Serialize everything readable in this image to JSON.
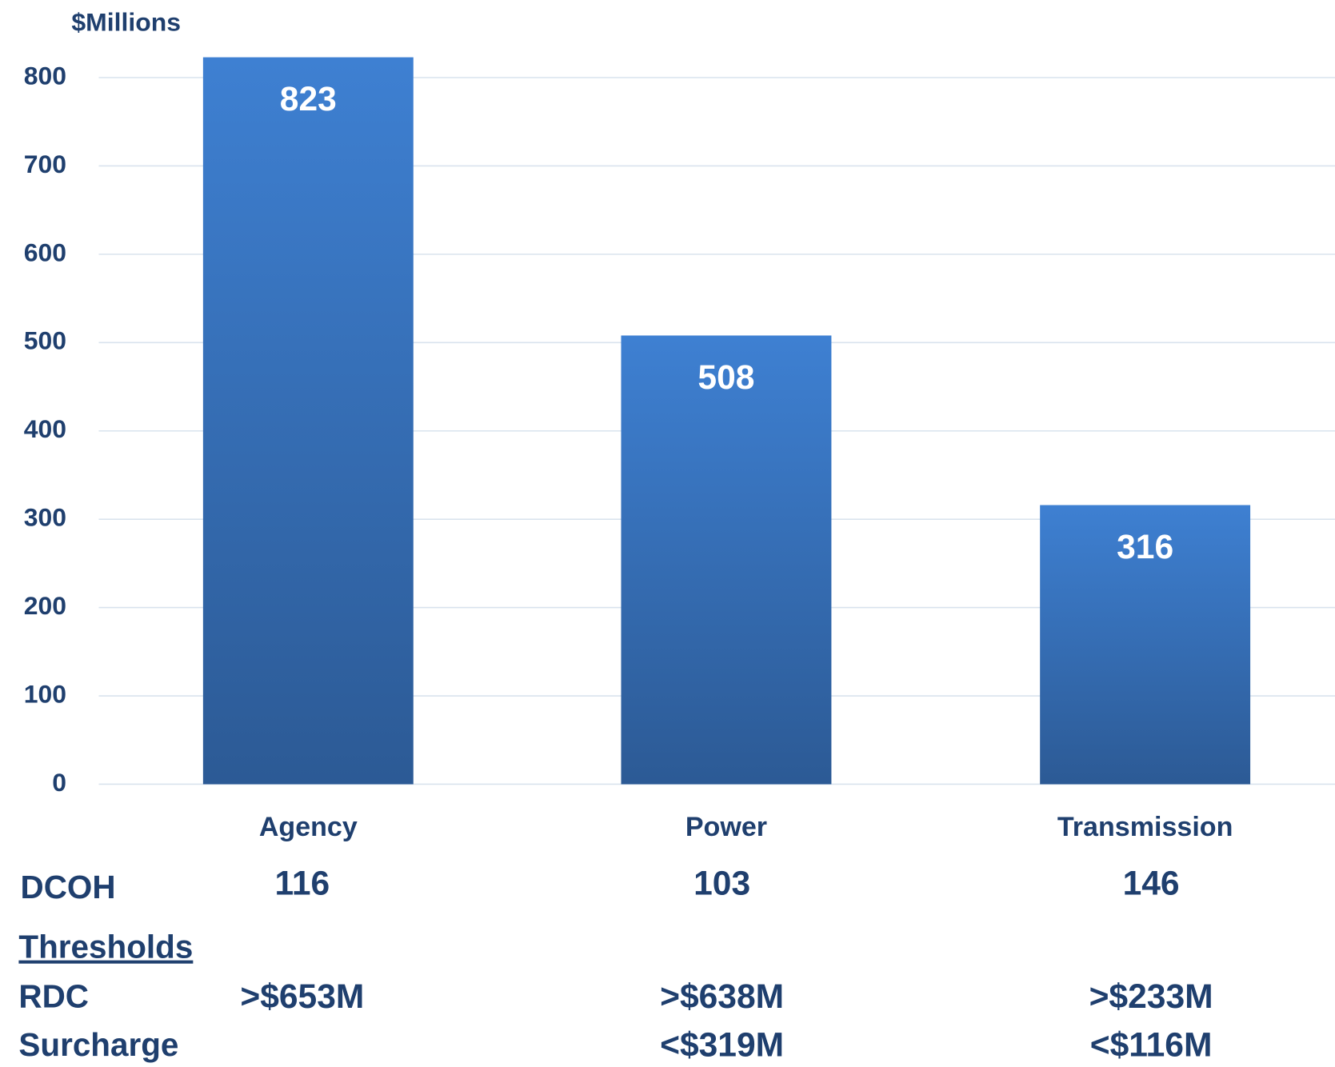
{
  "chart_data": {
    "type": "bar",
    "y_label": "$Millions",
    "categories": [
      "Agency",
      "Power",
      "Transmission"
    ],
    "values": [
      823,
      508,
      316
    ],
    "color_top": "#3e80d2",
    "color_bottom": "#2c5a95",
    "ylim": [
      0,
      800
    ],
    "yticks": [
      0,
      100,
      200,
      300,
      400,
      500,
      600,
      700,
      800
    ],
    "grid": true
  },
  "table": {
    "dcoh_label": "DCOH",
    "dcoh": [
      116,
      103,
      146
    ],
    "thresholds_label": "Thresholds",
    "rows": [
      {
        "label": "RDC",
        "values": [
          ">$653M",
          ">$638M",
          ">$233M"
        ]
      },
      {
        "label": "Surcharge",
        "values": [
          null,
          "<$319M",
          "<$116M"
        ]
      }
    ]
  }
}
